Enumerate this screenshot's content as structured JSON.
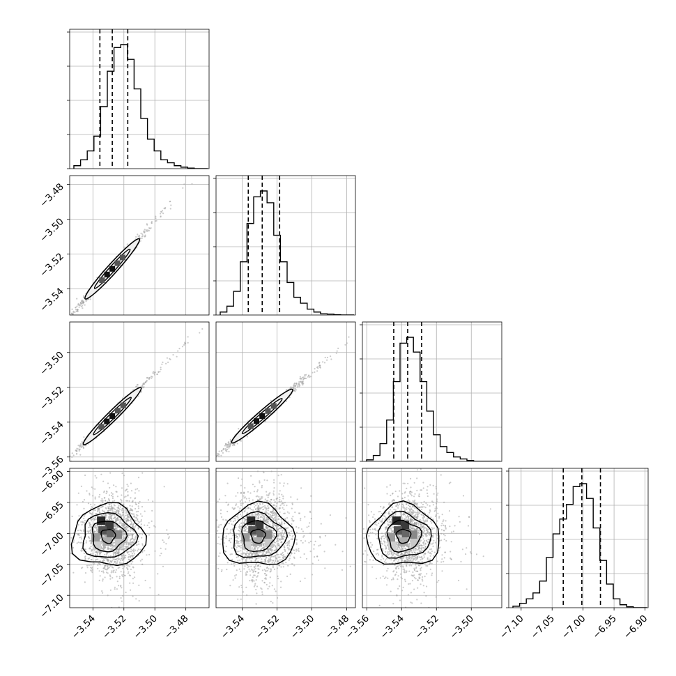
{
  "chart_data": {
    "type": "corner",
    "grid": true,
    "colors": {
      "line": "#000000",
      "points": "#a0a0a0",
      "grid": "#b0b0b0",
      "background": "#ffffff"
    },
    "parameters": [
      {
        "index": 0,
        "range": [
          -3.555,
          -3.465
        ],
        "ticks": [
          -3.54,
          -3.52,
          -3.5,
          -3.48
        ],
        "tick_labels": [
          "−3.54",
          "−3.52",
          "−3.50",
          "−3.48"
        ],
        "quantiles": [
          -3.5355,
          -3.5275,
          -3.5175
        ]
      },
      {
        "index": 1,
        "range": [
          -3.555,
          -3.475
        ],
        "ticks": [
          -3.54,
          -3.52,
          -3.5,
          -3.48
        ],
        "tick_labels": [
          "−3.54",
          "−3.52",
          "−3.50",
          "−3.48"
        ],
        "quantiles": [
          -3.5365,
          -3.5285,
          -3.5185
        ]
      },
      {
        "index": 2,
        "range": [
          -3.5625,
          -3.4825
        ],
        "ticks": [
          -3.56,
          -3.54,
          -3.52,
          -3.5
        ],
        "tick_labels": [
          "−3.56",
          "−3.54",
          "−3.52",
          "−3.50"
        ],
        "quantiles": [
          -3.5445,
          -3.5365,
          -3.5285
        ]
      },
      {
        "index": 3,
        "range": [
          -7.12,
          -6.895
        ],
        "ticks": [
          -7.1,
          -7.05,
          -7.0,
          -6.95,
          -6.9
        ],
        "tick_labels": [
          "−7.10",
          "−7.05",
          "−7.00",
          "−6.95",
          "−6.90"
        ],
        "quantiles": [
          -7.032,
          -7.002,
          -6.972
        ]
      }
    ],
    "histograms": [
      [
        1,
        3,
        6,
        11,
        21,
        33,
        41,
        42,
        37,
        27,
        17,
        10,
        6,
        3,
        2,
        1,
        0.5,
        0.2,
        0,
        0
      ],
      [
        1,
        3,
        8,
        18,
        31,
        40,
        42,
        38,
        27,
        18,
        11,
        6,
        4,
        2,
        1,
        0.4,
        0.3,
        0.1,
        0,
        0
      ],
      [
        0.5,
        2,
        6,
        14,
        27,
        40,
        42,
        37,
        27,
        17,
        9,
        5,
        3,
        1.5,
        0.8,
        0.3,
        0,
        0,
        0,
        0
      ],
      [
        0.5,
        1.5,
        3,
        5,
        9,
        17,
        25,
        30,
        35,
        41,
        42,
        37,
        27,
        16,
        8,
        3,
        1,
        0.3,
        0,
        0
      ]
    ]
  }
}
